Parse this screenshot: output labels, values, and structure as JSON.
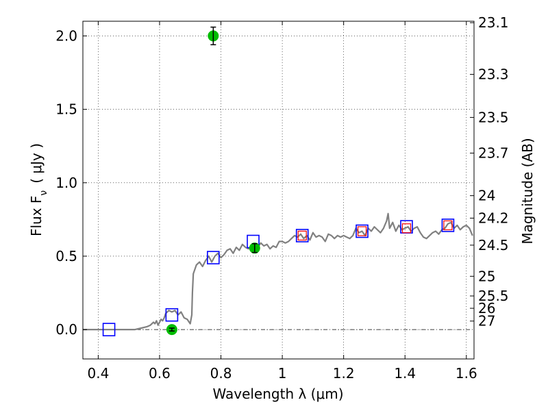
{
  "chart_data": {
    "type": "scatter",
    "xlabel": "Wavelength  λ (μm)",
    "ylabel": "Flux  F",
    "ylabel_sub": "ν",
    "ylabel_unit": "( μJy )",
    "y2label": "Magnitude (AB)",
    "xlim": [
      0.35,
      1.625
    ],
    "ylim": [
      -0.2,
      2.1
    ],
    "grid": true,
    "x_ticks": [
      {
        "v": 0.4,
        "label": "0.4"
      },
      {
        "v": 0.6,
        "label": "0.6"
      },
      {
        "v": 0.8,
        "label": "0.8"
      },
      {
        "v": 1.0,
        "label": "1"
      },
      {
        "v": 1.2,
        "label": "1.2"
      },
      {
        "v": 1.4,
        "label": "1.4"
      },
      {
        "v": 1.6,
        "label": "1.6"
      }
    ],
    "y_ticks": [
      {
        "v": 0.0,
        "label": "0.0"
      },
      {
        "v": 0.5,
        "label": "0.5"
      },
      {
        "v": 1.0,
        "label": "1.0"
      },
      {
        "v": 1.5,
        "label": "1.5"
      },
      {
        "v": 2.0,
        "label": "2.0"
      }
    ],
    "mag_ticks": [
      {
        "label": "23.1",
        "flux": 2.09
      },
      {
        "label": "23.3",
        "flux": 1.738
      },
      {
        "label": "23.5",
        "flux": 1.445
      },
      {
        "label": "23.7",
        "flux": 1.202
      },
      {
        "label": "24",
        "flux": 0.912
      },
      {
        "label": "24.2",
        "flux": 0.759
      },
      {
        "label": "24.5",
        "flux": 0.575
      },
      {
        "label": "25",
        "flux": 0.363
      },
      {
        "label": "25.5",
        "flux": 0.229
      },
      {
        "label": "26",
        "flux": 0.145
      },
      {
        "label": "27",
        "flux": 0.058
      }
    ],
    "zero_line": 0.0,
    "series": [
      {
        "name": "model-spectrum",
        "color": "#808080",
        "x": [
          0.35,
          0.4,
          0.45,
          0.5,
          0.52,
          0.54,
          0.56,
          0.57,
          0.58,
          0.585,
          0.59,
          0.595,
          0.6,
          0.605,
          0.61,
          0.615,
          0.62,
          0.625,
          0.63,
          0.64,
          0.65,
          0.66,
          0.67,
          0.68,
          0.69,
          0.7,
          0.705,
          0.707,
          0.71,
          0.72,
          0.73,
          0.74,
          0.75,
          0.76,
          0.77,
          0.78,
          0.79,
          0.8,
          0.81,
          0.82,
          0.83,
          0.84,
          0.85,
          0.86,
          0.87,
          0.88,
          0.89,
          0.9,
          0.91,
          0.92,
          0.93,
          0.94,
          0.95,
          0.96,
          0.97,
          0.98,
          0.99,
          1.0,
          1.01,
          1.02,
          1.03,
          1.04,
          1.05,
          1.06,
          1.07,
          1.08,
          1.09,
          1.1,
          1.11,
          1.12,
          1.13,
          1.14,
          1.15,
          1.16,
          1.17,
          1.18,
          1.19,
          1.2,
          1.21,
          1.22,
          1.23,
          1.24,
          1.25,
          1.26,
          1.27,
          1.28,
          1.29,
          1.3,
          1.31,
          1.32,
          1.33,
          1.34,
          1.345,
          1.35,
          1.36,
          1.37,
          1.38,
          1.39,
          1.4,
          1.41,
          1.42,
          1.43,
          1.44,
          1.45,
          1.46,
          1.47,
          1.48,
          1.49,
          1.5,
          1.51,
          1.52,
          1.53,
          1.54,
          1.55,
          1.56,
          1.57,
          1.58,
          1.59,
          1.6,
          1.61,
          1.62
        ],
        "y": [
          0.0,
          0.0,
          0.0,
          0.0,
          0.0,
          0.01,
          0.02,
          0.03,
          0.05,
          0.04,
          0.06,
          0.03,
          0.05,
          0.07,
          0.06,
          0.08,
          0.11,
          0.12,
          0.13,
          0.12,
          0.13,
          0.1,
          0.12,
          0.08,
          0.07,
          0.04,
          0.1,
          0.25,
          0.38,
          0.44,
          0.46,
          0.43,
          0.47,
          0.5,
          0.46,
          0.5,
          0.52,
          0.49,
          0.51,
          0.54,
          0.55,
          0.52,
          0.56,
          0.54,
          0.58,
          0.56,
          0.55,
          0.57,
          0.58,
          0.56,
          0.59,
          0.57,
          0.58,
          0.55,
          0.57,
          0.56,
          0.6,
          0.6,
          0.59,
          0.6,
          0.62,
          0.64,
          0.63,
          0.65,
          0.62,
          0.64,
          0.61,
          0.66,
          0.63,
          0.64,
          0.63,
          0.6,
          0.65,
          0.64,
          0.62,
          0.64,
          0.63,
          0.64,
          0.63,
          0.62,
          0.64,
          0.69,
          0.66,
          0.67,
          0.64,
          0.69,
          0.67,
          0.7,
          0.68,
          0.66,
          0.69,
          0.74,
          0.79,
          0.69,
          0.73,
          0.67,
          0.71,
          0.68,
          0.69,
          0.7,
          0.67,
          0.69,
          0.7,
          0.66,
          0.63,
          0.62,
          0.64,
          0.66,
          0.67,
          0.65,
          0.68,
          0.69,
          0.72,
          0.73,
          0.69,
          0.71,
          0.68,
          0.7,
          0.71,
          0.69,
          0.64
        ]
      }
    ],
    "model_points_blue": {
      "color": "#0000ff",
      "x": [
        0.435,
        0.64,
        0.775,
        0.905,
        1.065,
        1.26,
        1.405,
        1.54
      ],
      "y": [
        0.0,
        0.1,
        0.49,
        0.6,
        0.64,
        0.67,
        0.7,
        0.71
      ]
    },
    "model_points_red": {
      "color": "#ff0000",
      "x": [
        1.065,
        1.26,
        1.405,
        1.54
      ],
      "y": [
        0.64,
        0.67,
        0.69,
        0.71
      ]
    },
    "observed_points": {
      "color": "#00bb00",
      "x": [
        0.64,
        0.775,
        0.91
      ],
      "y": [
        0.0,
        2.0,
        0.555
      ],
      "err": [
        0.01,
        0.06,
        0.03
      ]
    }
  }
}
